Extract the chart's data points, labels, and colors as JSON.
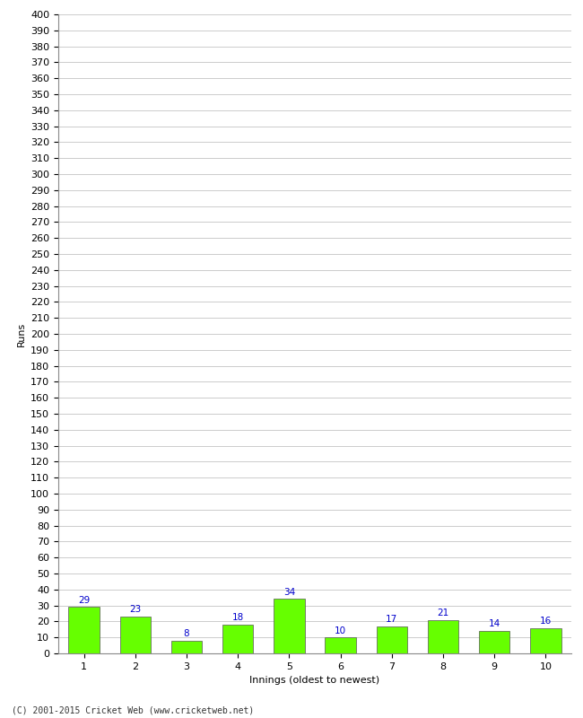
{
  "title": "",
  "xlabel": "Innings (oldest to newest)",
  "ylabel": "Runs",
  "categories": [
    1,
    2,
    3,
    4,
    5,
    6,
    7,
    8,
    9,
    10
  ],
  "values": [
    29,
    23,
    8,
    18,
    34,
    10,
    17,
    21,
    14,
    16
  ],
  "bar_color": "#66ff00",
  "bar_edge_color": "#555555",
  "label_color": "#0000cc",
  "ylim": [
    0,
    400
  ],
  "ytick_step": 10,
  "grid_color": "#cccccc",
  "bg_color": "#ffffff",
  "footer": "(C) 2001-2015 Cricket Web (www.cricketweb.net)",
  "label_fontsize": 7.5,
  "axis_fontsize": 8,
  "ylabel_fontsize": 8,
  "xlabel_fontsize": 8,
  "footer_fontsize": 7
}
